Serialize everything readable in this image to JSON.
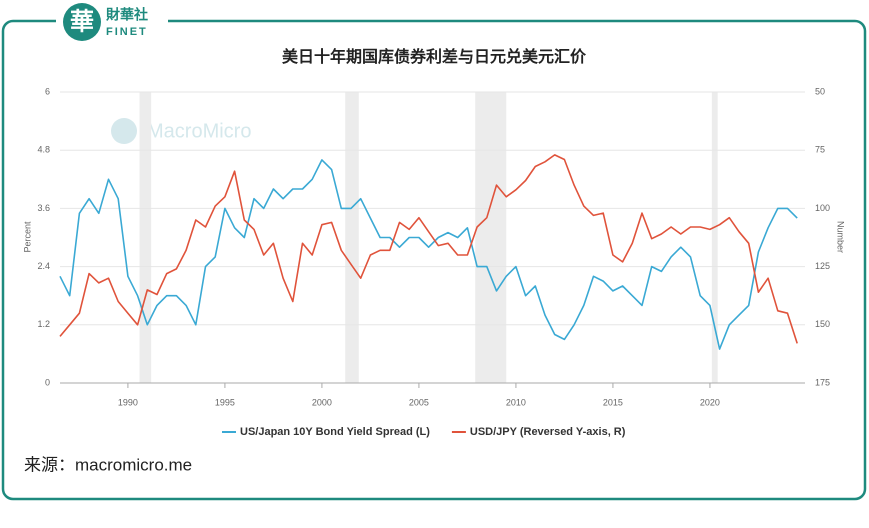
{
  "header": {
    "brand": "財華社",
    "brand_latin": "FINET",
    "logo_char": "華"
  },
  "source": "来源：macromicro.me",
  "chart_data": {
    "type": "line",
    "title": "美日十年期国库债券利差与日元兑美元汇价",
    "watermark": "MacroMicro",
    "y_label": "Percent",
    "y2_label": "Number",
    "x": [
      1986.5,
      1987,
      1987.5,
      1988,
      1988.5,
      1989,
      1989.5,
      1990,
      1990.5,
      1991,
      1991.5,
      1992,
      1992.5,
      1993,
      1993.5,
      1994,
      1994.5,
      1995,
      1995.5,
      1996,
      1996.5,
      1997,
      1997.5,
      1998,
      1998.5,
      1999,
      1999.5,
      2000,
      2000.5,
      2001,
      2001.5,
      2002,
      2002.5,
      2003,
      2003.5,
      2004,
      2004.5,
      2005,
      2005.5,
      2006,
      2006.5,
      2007,
      2007.5,
      2008,
      2008.5,
      2009,
      2009.5,
      2010,
      2010.5,
      2011,
      2011.5,
      2012,
      2012.5,
      2013,
      2013.5,
      2014,
      2014.5,
      2015,
      2015.5,
      2016,
      2016.5,
      2017,
      2017.5,
      2018,
      2018.5,
      2019,
      2019.5,
      2020,
      2020.5,
      2021,
      2021.5,
      2022,
      2022.5,
      2023,
      2023.5,
      2024,
      2024.5
    ],
    "series": [
      {
        "name": "US/Japan 10Y Bond Yield Spread (L)",
        "color": "#3aa9d4",
        "values": [
          2.2,
          1.8,
          3.5,
          3.8,
          3.5,
          4.2,
          3.8,
          2.2,
          1.8,
          1.2,
          1.6,
          1.8,
          1.8,
          1.6,
          1.2,
          2.4,
          2.6,
          3.6,
          3.2,
          3.0,
          3.8,
          3.6,
          4.0,
          3.8,
          4.0,
          4.0,
          4.2,
          4.6,
          4.4,
          3.6,
          3.6,
          3.8,
          3.4,
          3.0,
          3.0,
          2.8,
          3.0,
          3.0,
          2.8,
          3.0,
          3.1,
          3.0,
          3.2,
          2.4,
          2.4,
          1.9,
          2.2,
          2.4,
          1.8,
          2.0,
          1.4,
          1.0,
          0.9,
          1.2,
          1.6,
          2.2,
          2.1,
          1.9,
          2.0,
          1.8,
          1.6,
          2.4,
          2.3,
          2.6,
          2.8,
          2.6,
          1.8,
          1.6,
          0.7,
          1.2,
          1.4,
          1.6,
          2.7,
          3.2,
          3.6,
          3.6,
          3.4
        ]
      },
      {
        "name": "USD/JPY (Reversed Y-axis, R)",
        "color": "#e0533b",
        "axis": "y2",
        "values": [
          155,
          150,
          145,
          128,
          132,
          130,
          140,
          145,
          150,
          135,
          137,
          128,
          126,
          118,
          105,
          108,
          99,
          95,
          84,
          105,
          109,
          120,
          115,
          130,
          140,
          115,
          120,
          107,
          106,
          118,
          124,
          130,
          120,
          118,
          118,
          106,
          109,
          104,
          110,
          116,
          115,
          120,
          120,
          108,
          104,
          90,
          95,
          92,
          88,
          82,
          80,
          77,
          79,
          90,
          99,
          103,
          102,
          120,
          123,
          115,
          102,
          113,
          111,
          108,
          111,
          108,
          108,
          109,
          107,
          104,
          110,
          115,
          136,
          130,
          144,
          145,
          158
        ]
      }
    ],
    "shaded_periods": [
      [
        1990.6,
        1991.2
      ],
      [
        2001.2,
        2001.9
      ],
      [
        2007.9,
        2009.5
      ],
      [
        2020.1,
        2020.4
      ]
    ],
    "xlim": [
      1986.5,
      2024.9
    ],
    "xticks": [
      1990,
      1995,
      2000,
      2005,
      2010,
      2015,
      2020
    ],
    "ylim": [
      0,
      6
    ],
    "yticks": [
      0,
      1.2,
      2.4,
      3.6,
      4.8,
      6
    ],
    "y2lim": [
      50,
      175
    ],
    "y2ticks": [
      50,
      75,
      100,
      125,
      150,
      175
    ],
    "y2_reversed": true,
    "grid": true
  }
}
